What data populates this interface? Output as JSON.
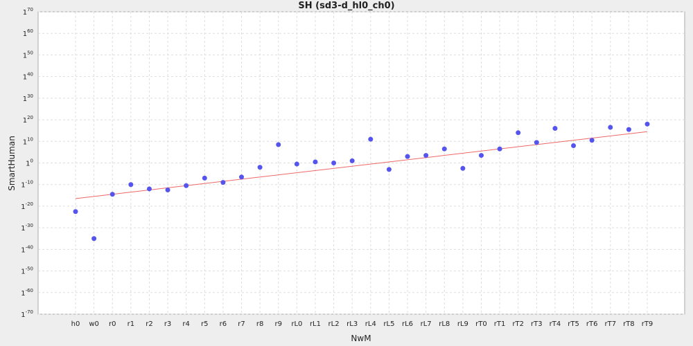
{
  "chart_data": {
    "type": "scatter",
    "title": "SH (sd3-d_hl0_ch0)",
    "xlabel": "NwM",
    "ylabel": "SmartHuman",
    "y_tick_base": "1",
    "y_ticks": [
      -70,
      -60,
      -50,
      -40,
      -30,
      -20,
      -10,
      0,
      10,
      20,
      30,
      40,
      50,
      60,
      70
    ],
    "ylim": [
      -70,
      70
    ],
    "grid": true,
    "categories": [
      "h0",
      "w0",
      "r0",
      "r1",
      "r2",
      "r3",
      "r4",
      "r5",
      "r6",
      "r7",
      "r8",
      "r9",
      "rL0",
      "rL1",
      "rL2",
      "rL3",
      "rL4",
      "rL5",
      "rL6",
      "rL7",
      "rL8",
      "rL9",
      "rT0",
      "rT1",
      "rT2",
      "rT3",
      "rT4",
      "rT5",
      "rT6",
      "rT7",
      "rT8",
      "rT9"
    ],
    "series": [
      {
        "values": [
          -22.5,
          -35,
          -14.5,
          -10,
          -12,
          -12.5,
          -10.5,
          -7,
          -9,
          -6.5,
          -2,
          8.5,
          -0.5,
          0.5,
          0,
          1,
          11,
          -3,
          3,
          3.5,
          6.5,
          -2.5,
          3.5,
          6.5,
          14,
          9.5,
          16,
          8,
          10.5,
          16.5,
          15.5,
          18
        ]
      }
    ],
    "trendline": {
      "start": -16.5,
      "end": 14.5
    },
    "colors": {
      "points": "#5555ee",
      "trendline": "#ee6666",
      "grid": "#dddddd",
      "plot_background": "#ffffff",
      "page_background": "#eeeeee"
    }
  }
}
